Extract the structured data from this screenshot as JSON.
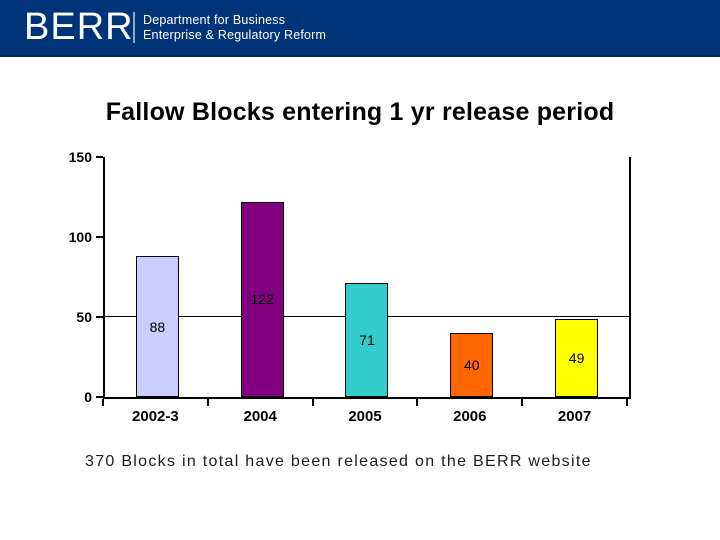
{
  "header": {
    "logo": "BERR",
    "dept_line1": "Department for Business",
    "dept_line2": "Enterprise & Regulatory Reform",
    "bg_color": "#003478"
  },
  "title": "Fallow Blocks entering 1 yr release period",
  "caption": "370 Blocks in total have been released on the BERR website",
  "chart_data": {
    "type": "bar",
    "title": "Fallow Blocks entering 1 yr release period",
    "categories": [
      "2002-3",
      "2004",
      "2005",
      "2006",
      "2007"
    ],
    "values": [
      88,
      122,
      71,
      40,
      49
    ],
    "bar_colors": [
      "#ccccff",
      "#800080",
      "#33cccc",
      "#ff6600",
      "#ffff00"
    ],
    "bar_border_color": "#000000",
    "ylim": [
      0,
      150
    ],
    "yticks": [
      0,
      50,
      100,
      150
    ],
    "gridlines": [
      50
    ],
    "data_labels": true,
    "legend_position": "none",
    "grid": "single line at 50"
  }
}
